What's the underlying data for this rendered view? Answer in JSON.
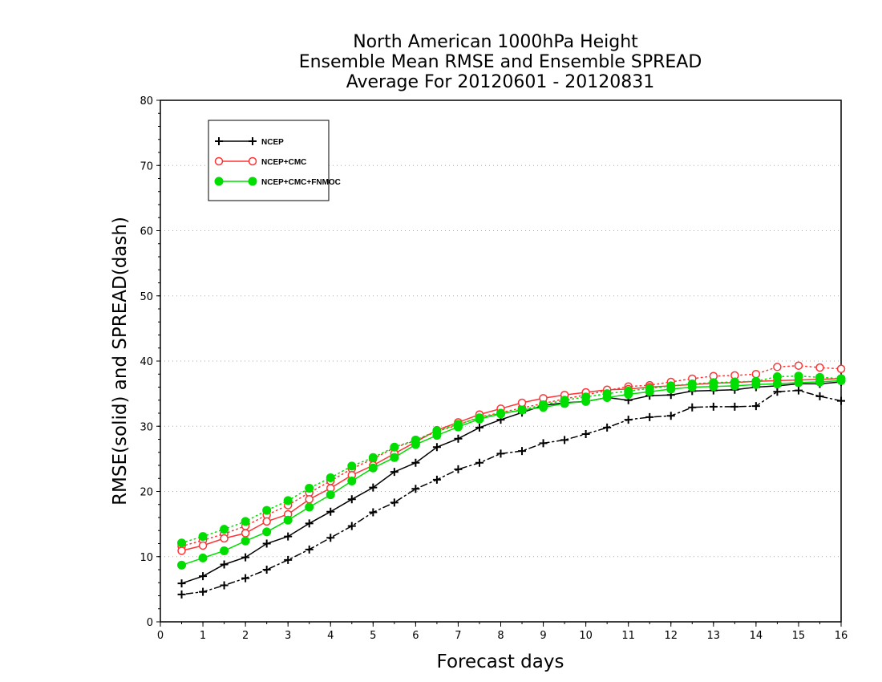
{
  "chart_data": {
    "type": "line",
    "title": [
      "North American 1000hPa Height",
      "Ensemble Mean RMSE and Ensemble SPREAD",
      "Average For 20120601 - 20120831"
    ],
    "xlabel": "Forecast days",
    "ylabel": "RMSE(solid) and SPREAD(dash)",
    "xlim": [
      0,
      16
    ],
    "ylim": [
      0,
      80
    ],
    "xticks": [
      "0",
      "1",
      "2",
      "3",
      "4",
      "5",
      "6",
      "7",
      "8",
      "9",
      "10",
      "11",
      "12",
      "13",
      "14",
      "15",
      "16"
    ],
    "yticks": [
      "0",
      "10",
      "20",
      "30",
      "40",
      "50",
      "60",
      "70",
      "80"
    ],
    "grid": "horizontal dotted",
    "legend_position": "top-left",
    "x": [
      0.5,
      1,
      1.5,
      2,
      2.5,
      3,
      3.5,
      4,
      4.5,
      5,
      5.5,
      6,
      6.5,
      7,
      7.5,
      8,
      8.5,
      9,
      9.5,
      10,
      10.5,
      11,
      11.5,
      12,
      12.5,
      13,
      13.5,
      14,
      14.5,
      15,
      15.5,
      16
    ],
    "series": [
      {
        "name": "NCEP",
        "color": "#000000",
        "marker": "plus",
        "rmse": [
          5.9,
          7.0,
          8.8,
          9.9,
          12.0,
          13.1,
          15.1,
          16.9,
          18.8,
          20.6,
          23.0,
          24.4,
          26.8,
          28.1,
          29.8,
          31.0,
          32.1,
          33.2,
          33.6,
          33.8,
          34.4,
          34.0,
          34.7,
          34.8,
          35.4,
          35.5,
          35.6,
          36.0,
          36.2,
          36.5,
          36.5,
          36.8
        ],
        "spread": [
          4.2,
          4.6,
          5.6,
          6.7,
          8.0,
          9.5,
          11.1,
          12.9,
          14.7,
          16.8,
          18.3,
          20.4,
          21.8,
          23.4,
          24.4,
          25.8,
          26.2,
          27.4,
          27.9,
          28.8,
          29.8,
          31.0,
          31.4,
          31.6,
          32.9,
          33.0,
          33.0,
          33.1,
          35.3,
          35.5,
          34.6,
          33.9
        ]
      },
      {
        "name": "NCEP+CMC",
        "color": "#ff3333",
        "marker": "open-circle",
        "rmse": [
          10.9,
          11.7,
          12.8,
          13.6,
          15.4,
          16.5,
          18.8,
          20.5,
          22.5,
          24.0,
          25.8,
          27.6,
          29.4,
          30.6,
          31.8,
          32.7,
          33.6,
          34.3,
          34.8,
          35.2,
          35.6,
          35.7,
          36.0,
          36.2,
          36.4,
          36.6,
          36.7,
          36.9,
          37.0,
          37.1,
          37.2,
          37.3
        ],
        "spread": [
          11.6,
          12.5,
          13.5,
          14.7,
          16.4,
          17.9,
          19.8,
          21.6,
          23.5,
          25.0,
          26.7,
          27.8,
          29.2,
          30.2,
          31.4,
          32.1,
          32.8,
          33.5,
          34.2,
          34.8,
          35.5,
          36.1,
          36.3,
          36.8,
          37.3,
          37.7,
          37.8,
          38.0,
          39.1,
          39.3,
          39.0,
          38.8
        ]
      },
      {
        "name": "NCEP+CMC+FNMOC",
        "color": "#00dd00",
        "marker": "filled-circle",
        "rmse": [
          8.7,
          9.8,
          10.9,
          12.4,
          13.8,
          15.6,
          17.6,
          19.5,
          21.6,
          23.6,
          25.2,
          27.2,
          28.6,
          29.9,
          31.1,
          31.9,
          32.5,
          32.9,
          33.5,
          33.8,
          34.4,
          34.9,
          35.3,
          35.7,
          36.0,
          36.1,
          36.2,
          36.4,
          36.5,
          36.7,
          36.8,
          37.0
        ],
        "spread": [
          12.1,
          13.1,
          14.2,
          15.4,
          17.1,
          18.6,
          20.5,
          22.1,
          23.9,
          25.2,
          26.8,
          27.9,
          29.3,
          30.3,
          31.3,
          32.0,
          32.5,
          33.3,
          34.0,
          34.5,
          35.0,
          35.4,
          35.8,
          36.2,
          36.5,
          36.7,
          36.8,
          36.9,
          37.6,
          37.7,
          37.5,
          37.3
        ]
      }
    ]
  }
}
